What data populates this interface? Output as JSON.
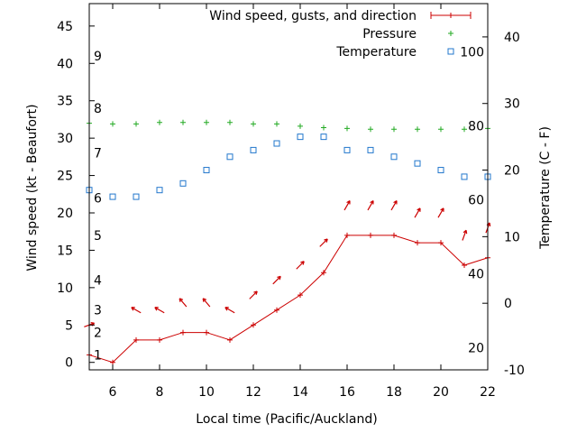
{
  "chart_data": {
    "type": "line",
    "xlabel": "Local time (Pacific/Auckland)",
    "ylabel_left": "Wind speed (kt - Beaufort)",
    "ylabel_right": "Temperature (C - F)",
    "xlim": [
      5,
      22
    ],
    "ylim_left": [
      -1,
      48
    ],
    "ylim_right": [
      -10,
      45
    ],
    "x_ticks": [
      6,
      8,
      10,
      12,
      14,
      16,
      18,
      20,
      22
    ],
    "y_ticks_left": [
      0,
      5,
      10,
      15,
      20,
      25,
      30,
      35,
      40,
      45
    ],
    "y_ticks_right": [
      -10,
      0,
      10,
      20,
      30,
      40
    ],
    "beaufort_labels": [
      {
        "label": "1",
        "kt": 1
      },
      {
        "label": "2",
        "kt": 4
      },
      {
        "label": "3",
        "kt": 7
      },
      {
        "label": "4",
        "kt": 11
      },
      {
        "label": "5",
        "kt": 17
      },
      {
        "label": "6",
        "kt": 22
      },
      {
        "label": "7",
        "kt": 28
      },
      {
        "label": "8",
        "kt": 34
      },
      {
        "label": "9",
        "kt": 41
      }
    ],
    "fahrenheit_labels": [
      {
        "label": "20",
        "f": 20
      },
      {
        "label": "40",
        "f": 40
      },
      {
        "label": "60",
        "f": 60
      },
      {
        "label": "80",
        "f": 80
      },
      {
        "label": "100",
        "f": 100
      }
    ],
    "legend": {
      "position": "top-right",
      "entries": [
        "Wind speed, gusts, and direction",
        "Pressure",
        "Temperature"
      ]
    },
    "series": [
      {
        "name": "Wind speed, gusts, and direction",
        "color": "#cc0000",
        "x": [
          5,
          6,
          7,
          8,
          9,
          10,
          11,
          12,
          13,
          14,
          15,
          16,
          17,
          18,
          19,
          20,
          21,
          22
        ],
        "values": [
          1,
          0,
          3,
          3,
          4,
          4,
          3,
          5,
          7,
          9,
          12,
          17,
          17,
          17,
          16,
          16,
          13,
          14
        ]
      },
      {
        "name": "Pressure",
        "color": "#22aa22",
        "x": [
          5,
          6,
          7,
          8,
          9,
          10,
          11,
          12,
          13,
          14,
          15,
          16,
          17,
          18,
          19,
          20,
          21,
          22
        ],
        "values": [
          32.0,
          31.9,
          31.9,
          32.1,
          32.1,
          32.1,
          32.1,
          31.9,
          31.9,
          31.6,
          31.4,
          31.3,
          31.2,
          31.2,
          31.2,
          31.2,
          31.2,
          31.3
        ]
      },
      {
        "name": "Temperature",
        "color": "#2277cc",
        "x": [
          5,
          6,
          7,
          8,
          9,
          10,
          11,
          12,
          13,
          14,
          15,
          16,
          17,
          18,
          19,
          20,
          21,
          22
        ],
        "values": [
          17,
          16,
          16,
          17,
          18,
          20,
          22,
          23,
          24,
          25,
          25,
          23,
          23,
          22,
          21,
          20,
          19,
          19
        ]
      }
    ],
    "wind_arrows": {
      "color": "#cc0000",
      "x": [
        5,
        7,
        8,
        9,
        10,
        11,
        12,
        13,
        14,
        15,
        16,
        17,
        18,
        19,
        20,
        21,
        22
      ],
      "kt": [
        5,
        7,
        7,
        8,
        8,
        7,
        9,
        11,
        13,
        16,
        21,
        21,
        21,
        20,
        20,
        17,
        18
      ],
      "direction_deg": [
        70,
        300,
        300,
        320,
        320,
        300,
        45,
        45,
        45,
        45,
        30,
        30,
        30,
        30,
        30,
        20,
        20
      ]
    }
  }
}
